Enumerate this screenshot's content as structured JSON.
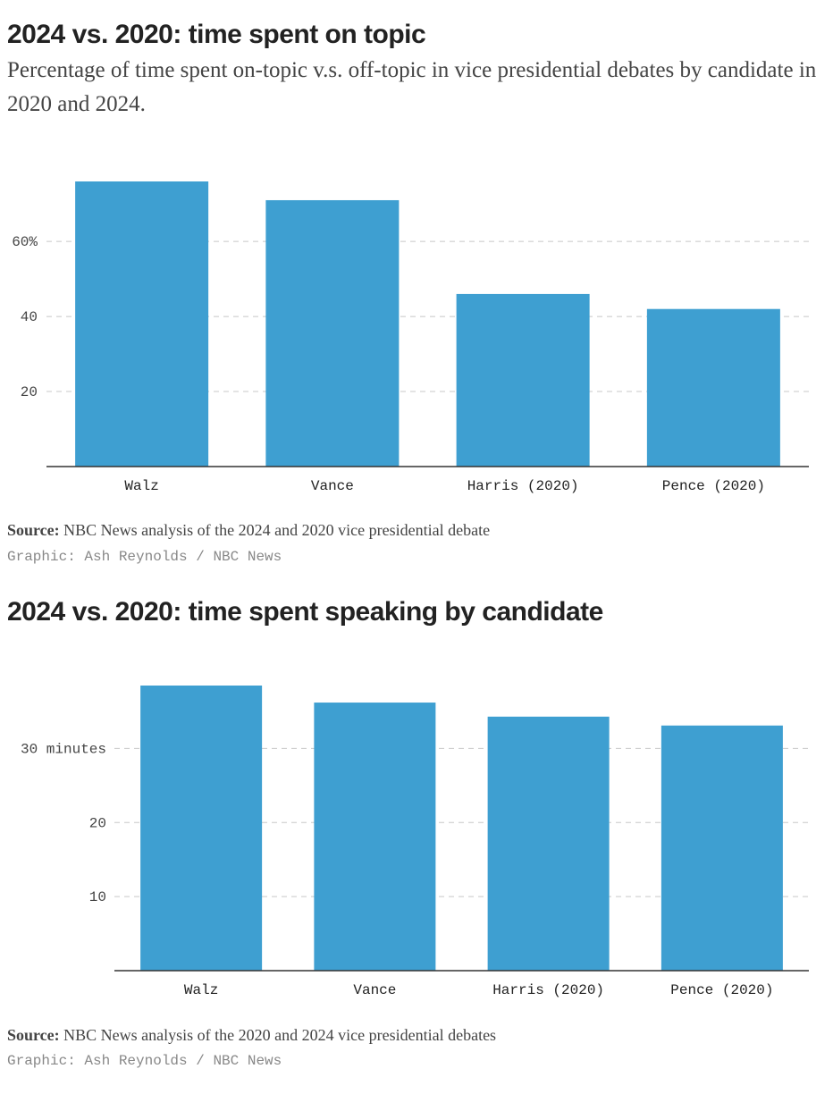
{
  "chart_data": [
    {
      "type": "bar",
      "title": "2024 vs. 2020: time spent on topic",
      "subtitle": "Percentage of time spent on-topic v.s. off-topic in vice presidential debates by candidate in 2020 and 2024.",
      "categories": [
        "Walz",
        "Vance",
        "Harris (2020)",
        "Pence (2020)"
      ],
      "values": [
        76,
        71,
        46,
        42
      ],
      "yticks": [
        20,
        40,
        60
      ],
      "ytick_labels": [
        "20",
        "40",
        "60%"
      ],
      "ylim": [
        0,
        76
      ],
      "grid": true,
      "color": "#3e9fd1",
      "source_label": "Source:",
      "source_text": "NBC News analysis of the 2024 and 2020 vice presidential debate",
      "credit": "Graphic: Ash Reynolds / NBC News"
    },
    {
      "type": "bar",
      "title": "2024 vs. 2020: time spent speaking by candidate",
      "categories": [
        "Walz",
        "Vance",
        "Harris (2020)",
        "Pence (2020)"
      ],
      "values": [
        38.5,
        36.2,
        34.3,
        33.1
      ],
      "yticks": [
        10,
        20,
        30
      ],
      "ytick_labels": [
        "10",
        "20",
        "30 minutes"
      ],
      "ylim": [
        0,
        38.5
      ],
      "grid": true,
      "color": "#3e9fd1",
      "source_label": "Source:",
      "source_text": "NBC News analysis of the 2020 and 2024 vice presidential debates",
      "credit": "Graphic: Ash Reynolds / NBC News"
    }
  ]
}
